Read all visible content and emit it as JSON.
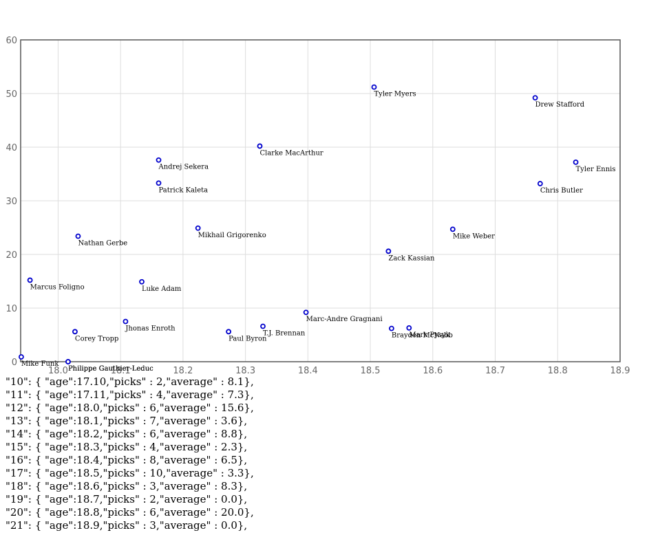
{
  "chart_data": {
    "type": "scatter",
    "xlim": [
      17.94,
      18.9
    ],
    "ylim": [
      0,
      60
    ],
    "x_ticks": [
      "18.0",
      "18.1",
      "18.2",
      "18.3",
      "18.4",
      "18.5",
      "18.6",
      "18.7",
      "18.8",
      "18.9"
    ],
    "y_ticks": [
      "0",
      "10",
      "20",
      "30",
      "40",
      "50",
      "60"
    ],
    "grid": true,
    "point_color": "#0000cc",
    "points": [
      {
        "x": 18.506,
        "y": 51.2,
        "label": "Tyler Myers"
      },
      {
        "x": 18.764,
        "y": 49.2,
        "label": "Drew Stafford"
      },
      {
        "x": 18.323,
        "y": 40.2,
        "label": "Clarke MacArthur"
      },
      {
        "x": 18.161,
        "y": 37.6,
        "label": "Andrej Sekera"
      },
      {
        "x": 18.829,
        "y": 37.2,
        "label": "Tyler Ennis"
      },
      {
        "x": 18.161,
        "y": 33.3,
        "label": "Patrick Kaleta"
      },
      {
        "x": 18.772,
        "y": 33.2,
        "label": "Chris Butler"
      },
      {
        "x": 18.224,
        "y": 24.9,
        "label": "Mikhail Grigorenko"
      },
      {
        "x": 18.632,
        "y": 24.7,
        "label": "Mike Weber"
      },
      {
        "x": 18.032,
        "y": 23.4,
        "label": "Nathan Gerbe"
      },
      {
        "x": 18.529,
        "y": 20.6,
        "label": "Zack Kassian"
      },
      {
        "x": 17.955,
        "y": 15.2,
        "label": "Marcus Foligno"
      },
      {
        "x": 18.134,
        "y": 14.9,
        "label": "Luke Adam"
      },
      {
        "x": 18.397,
        "y": 9.2,
        "label": "Marc-Andre Gragnani"
      },
      {
        "x": 18.108,
        "y": 7.5,
        "label": "Jhonas Enroth"
      },
      {
        "x": 18.328,
        "y": 6.6,
        "label": "T.J. Brennan"
      },
      {
        "x": 18.534,
        "y": 6.2,
        "label": "Brayden McNabb"
      },
      {
        "x": 18.562,
        "y": 6.3,
        "label": "Mark Pysyk"
      },
      {
        "x": 18.027,
        "y": 5.6,
        "label": "Corey Tropp"
      },
      {
        "x": 18.273,
        "y": 5.6,
        "label": "Paul Byron"
      },
      {
        "x": 17.941,
        "y": 0.9,
        "label": "Mike Funk"
      },
      {
        "x": 18.016,
        "y": 0.0,
        "label": "Philippe Gauthier-Leduc"
      },
      {
        "x": 18.016,
        "y": 0.0,
        "label": "Philippe Gauthier-Leduc"
      }
    ]
  },
  "text_block": {
    "lines": [
      "\"10\": { \"age\":17.10,\"picks\" : 2,\"average\" : 8.1},",
      "\"11\": { \"age\":17.11,\"picks\" : 4,\"average\" : 7.3},",
      "\"12\": { \"age\":18.0,\"picks\" : 6,\"average\" : 15.6},",
      "\"13\": { \"age\":18.1,\"picks\" : 7,\"average\" : 3.6},",
      "\"14\": { \"age\":18.2,\"picks\" : 6,\"average\" : 8.8},",
      "\"15\": { \"age\":18.3,\"picks\" : 4,\"average\" : 2.3},",
      "\"16\": { \"age\":18.4,\"picks\" : 8,\"average\" : 6.5},",
      "\"17\": { \"age\":18.5,\"picks\" : 10,\"average\" : 3.3},",
      "\"18\": { \"age\":18.6,\"picks\" : 3,\"average\" : 8.3},",
      "\"19\": { \"age\":18.7,\"picks\" : 2,\"average\" : 0.0},",
      "\"20\": { \"age\":18.8,\"picks\" : 6,\"average\" : 20.0},",
      "\"21\": { \"age\":18.9,\"picks\" : 3,\"average\" : 0.0},"
    ]
  }
}
